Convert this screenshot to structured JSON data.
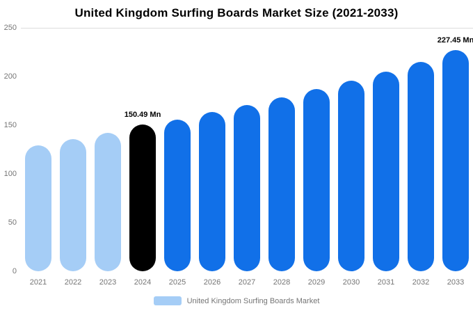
{
  "chart_data": {
    "type": "bar",
    "title": "United Kingdom Surfing Boards Market Size (2021-2033)",
    "categories": [
      "2021",
      "2022",
      "2023",
      "2024",
      "2025",
      "2026",
      "2027",
      "2028",
      "2029",
      "2030",
      "2031",
      "2032",
      "2033"
    ],
    "values": [
      129,
      135.5,
      142.5,
      150.49,
      156,
      163.5,
      170.5,
      178.5,
      187,
      196,
      205,
      215,
      227.45
    ],
    "unit": "Mn",
    "xlabel": "",
    "ylabel": "",
    "ylim": [
      0,
      250
    ],
    "yticks": [
      0,
      50,
      100,
      150,
      200,
      250
    ],
    "grid": "top-line-only",
    "legend_position": "bottom",
    "bar_colors": {
      "past": "#a5cdf6",
      "current": "#000000",
      "forecast": "#1170e8"
    },
    "color_roles": [
      "past",
      "past",
      "past",
      "current",
      "forecast",
      "forecast",
      "forecast",
      "forecast",
      "forecast",
      "forecast",
      "forecast",
      "forecast",
      "forecast"
    ],
    "annotations": [
      {
        "index": 3,
        "text": "150.49 Mn"
      },
      {
        "index": 12,
        "text": "227.45 Mn"
      }
    ],
    "legend": [
      {
        "label": "United Kingdom Surfing Boards Market",
        "color": "#a5cdf6"
      }
    ]
  }
}
